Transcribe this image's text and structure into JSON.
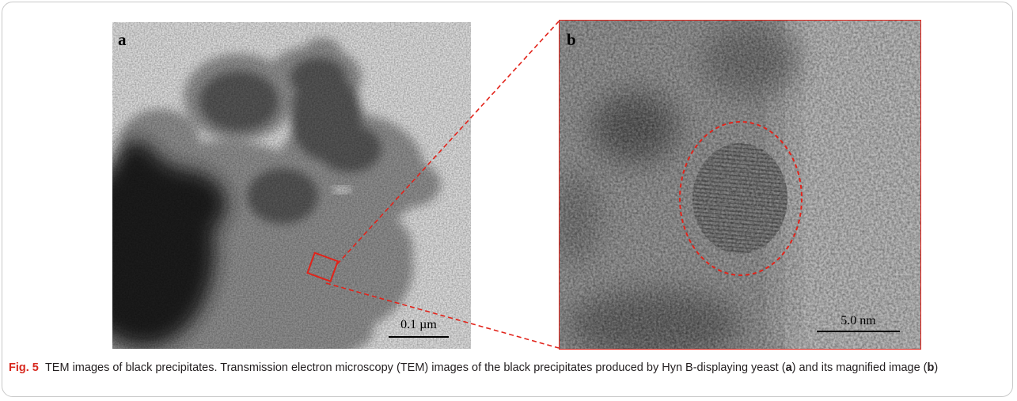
{
  "panel_a": {
    "label": "a",
    "scale_bar": "0.1 µm"
  },
  "panel_b": {
    "label": "b",
    "scale_bar": "5.0 nm"
  },
  "caption": {
    "fig_label": "Fig. 5",
    "text_1": "TEM images of black precipitates. Transmission electron microscopy (TEM) images of the black precipitates produced by Hyn B-displaying yeast (",
    "ref_a": "a",
    "text_2": ") and its magnified image (",
    "ref_b": "b",
    "text_3": ")"
  },
  "colors": {
    "highlight": "#e2231a",
    "caption_fig": "#d7281e",
    "border": "#c9c9c9"
  }
}
